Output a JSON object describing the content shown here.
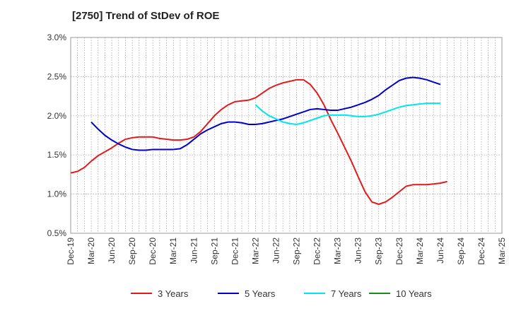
{
  "title": "[2750]  Trend of StDev of ROE",
  "chart_data": {
    "type": "line",
    "title": "[2750]  Trend of StDev of ROE",
    "xlabel": "",
    "ylabel": "",
    "ylim": [
      0.005,
      0.03
    ],
    "yticks": [
      0.005,
      0.01,
      0.015,
      0.02,
      0.025,
      0.03
    ],
    "ytick_labels": [
      "0.5%",
      "1.0%",
      "1.5%",
      "2.0%",
      "2.5%",
      "3.0%"
    ],
    "x_ticks": [
      "Dec-19",
      "Mar-20",
      "Jun-20",
      "Sep-20",
      "Dec-20",
      "Mar-21",
      "Jun-21",
      "Sep-21",
      "Dec-21",
      "Mar-22",
      "Jun-22",
      "Sep-22",
      "Dec-22",
      "Mar-23",
      "Jun-23",
      "Sep-23",
      "Dec-23",
      "Mar-24",
      "Jun-24",
      "Sep-24",
      "Dec-24",
      "Mar-25"
    ],
    "grid": true,
    "legend_position": "bottom",
    "series": [
      {
        "name": "3 Years",
        "color": "#e31a1c",
        "points": [
          [
            "Dec-19",
            0.0127
          ],
          [
            "Jan-20",
            0.0129
          ],
          [
            "Feb-20",
            0.0134
          ],
          [
            "Mar-20",
            0.0142
          ],
          [
            "Apr-20",
            0.0149
          ],
          [
            "May-20",
            0.0154
          ],
          [
            "Jun-20",
            0.0159
          ],
          [
            "Jul-20",
            0.0165
          ],
          [
            "Aug-20",
            0.017
          ],
          [
            "Sep-20",
            0.0172
          ],
          [
            "Oct-20",
            0.0173
          ],
          [
            "Nov-20",
            0.0173
          ],
          [
            "Dec-20",
            0.0173
          ],
          [
            "Jan-21",
            0.0171
          ],
          [
            "Feb-21",
            0.017
          ],
          [
            "Mar-21",
            0.0169
          ],
          [
            "Apr-21",
            0.0169
          ],
          [
            "May-21",
            0.017
          ],
          [
            "Jun-21",
            0.0173
          ],
          [
            "Jul-21",
            0.018
          ],
          [
            "Aug-21",
            0.019
          ],
          [
            "Sep-21",
            0.02
          ],
          [
            "Oct-21",
            0.0208
          ],
          [
            "Nov-21",
            0.0214
          ],
          [
            "Dec-21",
            0.0218
          ],
          [
            "Jan-22",
            0.0219
          ],
          [
            "Feb-22",
            0.022
          ],
          [
            "Mar-22",
            0.0223
          ],
          [
            "Apr-22",
            0.0229
          ],
          [
            "May-22",
            0.0235
          ],
          [
            "Jun-22",
            0.0239
          ],
          [
            "Jul-22",
            0.0242
          ],
          [
            "Aug-22",
            0.0244
          ],
          [
            "Sep-22",
            0.0246
          ],
          [
            "Oct-22",
            0.0246
          ],
          [
            "Nov-22",
            0.024
          ],
          [
            "Dec-22",
            0.0229
          ],
          [
            "Jan-23",
            0.0214
          ],
          [
            "Feb-23",
            0.0195
          ],
          [
            "Mar-23",
            0.0178
          ],
          [
            "Apr-23",
            0.016
          ],
          [
            "May-23",
            0.0142
          ],
          [
            "Jun-23",
            0.0122
          ],
          [
            "Jul-23",
            0.0103
          ],
          [
            "Aug-23",
            0.009
          ],
          [
            "Sep-23",
            0.0087
          ],
          [
            "Oct-23",
            0.009
          ],
          [
            "Nov-23",
            0.0096
          ],
          [
            "Dec-23",
            0.0103
          ],
          [
            "Jan-24",
            0.011
          ],
          [
            "Feb-24",
            0.0112
          ],
          [
            "Mar-24",
            0.0112
          ],
          [
            "Apr-24",
            0.0112
          ],
          [
            "May-24",
            0.0113
          ],
          [
            "Jun-24",
            0.0114
          ],
          [
            "Jul-24",
            0.0116
          ]
        ]
      },
      {
        "name": "5 Years",
        "color": "#0000cc",
        "points": [
          [
            "Mar-20",
            0.0192
          ],
          [
            "Apr-20",
            0.0183
          ],
          [
            "May-20",
            0.0175
          ],
          [
            "Jun-20",
            0.0169
          ],
          [
            "Jul-20",
            0.0164
          ],
          [
            "Aug-20",
            0.016
          ],
          [
            "Sep-20",
            0.0157
          ],
          [
            "Oct-20",
            0.0156
          ],
          [
            "Nov-20",
            0.0156
          ],
          [
            "Dec-20",
            0.0157
          ],
          [
            "Jan-21",
            0.0157
          ],
          [
            "Feb-21",
            0.0157
          ],
          [
            "Mar-21",
            0.0157
          ],
          [
            "Apr-21",
            0.0158
          ],
          [
            "May-21",
            0.0163
          ],
          [
            "Jun-21",
            0.017
          ],
          [
            "Jul-21",
            0.0177
          ],
          [
            "Aug-21",
            0.0182
          ],
          [
            "Sep-21",
            0.0186
          ],
          [
            "Oct-21",
            0.019
          ],
          [
            "Nov-21",
            0.0192
          ],
          [
            "Dec-21",
            0.0192
          ],
          [
            "Jan-22",
            0.0191
          ],
          [
            "Feb-22",
            0.0189
          ],
          [
            "Mar-22",
            0.0189
          ],
          [
            "Apr-22",
            0.019
          ],
          [
            "May-22",
            0.0192
          ],
          [
            "Jun-22",
            0.0194
          ],
          [
            "Jul-22",
            0.0196
          ],
          [
            "Aug-22",
            0.0199
          ],
          [
            "Sep-22",
            0.0202
          ],
          [
            "Oct-22",
            0.0205
          ],
          [
            "Nov-22",
            0.0208
          ],
          [
            "Dec-22",
            0.0209
          ],
          [
            "Jan-23",
            0.0208
          ],
          [
            "Feb-23",
            0.0207
          ],
          [
            "Mar-23",
            0.0207
          ],
          [
            "Apr-23",
            0.0209
          ],
          [
            "May-23",
            0.0211
          ],
          [
            "Jun-23",
            0.0214
          ],
          [
            "Jul-23",
            0.0217
          ],
          [
            "Aug-23",
            0.0221
          ],
          [
            "Sep-23",
            0.0226
          ],
          [
            "Oct-23",
            0.0233
          ],
          [
            "Nov-23",
            0.0239
          ],
          [
            "Dec-23",
            0.0245
          ],
          [
            "Jan-24",
            0.0248
          ],
          [
            "Feb-24",
            0.0249
          ],
          [
            "Mar-24",
            0.0248
          ],
          [
            "Apr-24",
            0.0246
          ],
          [
            "May-24",
            0.0243
          ],
          [
            "Jun-24",
            0.024
          ]
        ]
      },
      {
        "name": "7 Years",
        "color": "#00e5ee",
        "points": [
          [
            "Mar-22",
            0.0214
          ],
          [
            "Apr-22",
            0.0206
          ],
          [
            "May-22",
            0.02
          ],
          [
            "Jun-22",
            0.0196
          ],
          [
            "Jul-22",
            0.0192
          ],
          [
            "Aug-22",
            0.019
          ],
          [
            "Sep-22",
            0.0189
          ],
          [
            "Oct-22",
            0.0191
          ],
          [
            "Nov-22",
            0.0194
          ],
          [
            "Dec-22",
            0.0197
          ],
          [
            "Jan-23",
            0.02
          ],
          [
            "Feb-23",
            0.0201
          ],
          [
            "Mar-23",
            0.0201
          ],
          [
            "Apr-23",
            0.0201
          ],
          [
            "May-23",
            0.02
          ],
          [
            "Jun-23",
            0.0199
          ],
          [
            "Jul-23",
            0.0199
          ],
          [
            "Aug-23",
            0.02
          ],
          [
            "Sep-23",
            0.0202
          ],
          [
            "Oct-23",
            0.0205
          ],
          [
            "Nov-23",
            0.0208
          ],
          [
            "Dec-23",
            0.0211
          ],
          [
            "Jan-24",
            0.0213
          ],
          [
            "Feb-24",
            0.0214
          ],
          [
            "Mar-24",
            0.0215
          ],
          [
            "Apr-24",
            0.0216
          ],
          [
            "May-24",
            0.0216
          ],
          [
            "Jun-24",
            0.0216
          ]
        ]
      },
      {
        "name": "10 Years",
        "color": "#1a8c1a",
        "points": []
      }
    ]
  }
}
